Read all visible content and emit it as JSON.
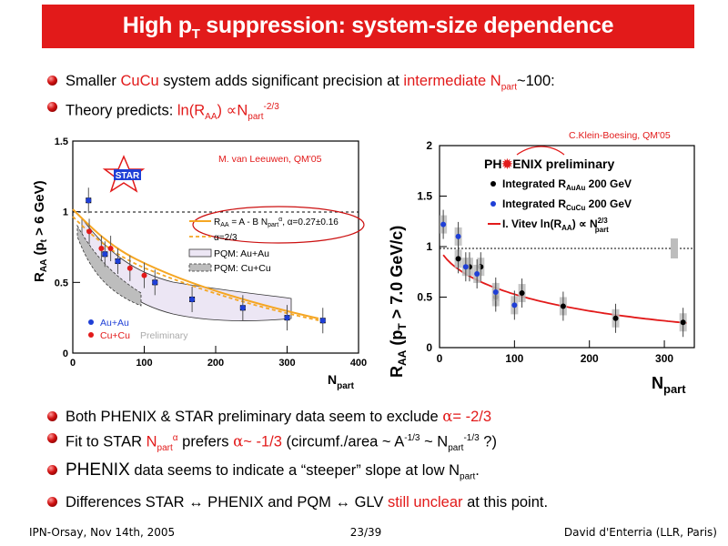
{
  "title": {
    "pre": "High p",
    "sub": "T",
    "post": " suppression: system-size dependence"
  },
  "top_bullets": [
    {
      "a": "Smaller ",
      "b": "CuCu",
      "c": " system adds significant precision at ",
      "d": "intermediate N",
      "dsub": "part",
      "e": "~100",
      "f": ":"
    },
    {
      "a": "Theory predicts: ",
      "b": "ln(R",
      "bsub": "AA",
      "c": ") ∝N",
      "csub": "part",
      "csup": "-2/3"
    }
  ],
  "left_chart": {
    "credit": "M. van Leeuwen, QM'05",
    "logo": "STAR",
    "ylabel": "R",
    "ylabel_sub": "AA",
    "ylabel_rest": " (p",
    "ylabel_sub2": "t",
    "ylabel_tail": " > 6 GeV)",
    "xlabel": "N",
    "xlabel_sub": "part",
    "yticks": [
      "0",
      "0.5",
      "1",
      "1.5"
    ],
    "xticks": [
      "0",
      "100",
      "200",
      "300",
      "400"
    ],
    "legend": {
      "fit_a": "R",
      "fit_sub": "AA",
      "fit_b": " = A - B N",
      "fit_sub2": "part",
      "fit_sup": "α",
      "fit_c": ", α=0.27±0.16",
      "alpha": "α=2/3",
      "pqm_auau": "PQM: Au+Au",
      "pqm_cucu": "PQM: Cu+Cu",
      "auau": "Au+Au",
      "cucu": "Cu+Cu",
      "prelim": "Preliminary"
    },
    "colors": {
      "auau": "#1f3fd6",
      "cucu": "#e21a1a",
      "fit": "#f5a623"
    }
  },
  "right_chart": {
    "credit": "C.Klein-Boesing, QM'05",
    "logo_a": "PH",
    "logo_b": "ENIX",
    "logo_c": " preliminary",
    "ylabel": "R",
    "ylabel_sub": "AA",
    "ylabel_rest": " (p",
    "ylabel_sub2": "T",
    "ylabel_tail": " > 7.0 GeV/c)",
    "xlabel": "N",
    "xlabel_sub": "part",
    "yticks": [
      "0",
      "0.5",
      "1",
      "1.5",
      "2"
    ],
    "xticks": [
      "0",
      "100",
      "200",
      "300"
    ],
    "legend": {
      "l1a": "Integrated R",
      "l1sub": "AuAu",
      "l1b": " 200 GeV",
      "l2a": "Integrated R",
      "l2sub": "CuCu",
      "l2b": " 200 GeV",
      "l3a": "I. Vitev  ln(R",
      "l3sub": "AA",
      "l3b": ") ∝ N",
      "l3sup": "2/3",
      "l3sub2": "part"
    }
  },
  "chart_data": [
    {
      "type": "scatter",
      "x_label": "N_part",
      "y_label": "R_AA (p_t > 6 GeV)",
      "xlim": [
        0,
        400
      ],
      "ylim": [
        0,
        1.5
      ],
      "series": [
        {
          "name": "Au+Au",
          "x": [
            22,
            45,
            63,
            115,
            167,
            238,
            300,
            350
          ],
          "y": [
            1.08,
            0.7,
            0.65,
            0.5,
            0.38,
            0.32,
            0.25,
            0.23
          ]
        },
        {
          "name": "Cu+Cu",
          "x": [
            23,
            40,
            53,
            80,
            100
          ],
          "y": [
            0.86,
            0.74,
            0.74,
            0.6,
            0.55
          ]
        }
      ]
    },
    {
      "type": "scatter",
      "x_label": "N_part",
      "y_label": "R_AA (p_T > 7.0 GeV/c)",
      "xlim": [
        0,
        340
      ],
      "ylim": [
        0,
        2
      ],
      "series": [
        {
          "name": "Integrated R_AuAu 200 GeV",
          "x": [
            25,
            40,
            55,
            75,
            110,
            165,
            235,
            325
          ],
          "y": [
            0.88,
            0.8,
            0.8,
            0.5,
            0.54,
            0.41,
            0.29,
            0.25
          ]
        },
        {
          "name": "Integrated R_CuCu 200 GeV",
          "x": [
            5,
            25,
            35,
            50,
            75,
            100
          ],
          "y": [
            1.22,
            1.1,
            0.8,
            0.73,
            0.55,
            0.42
          ]
        }
      ]
    }
  ],
  "bottom_bullets": [
    {
      "a": "Both PHENIX & STAR preliminary data seem to exclude ",
      "b": "α",
      "c": "= -2/3"
    },
    {
      "a": "Fit to STAR ",
      "b": "N",
      "bsub": "part",
      "bsup": "α",
      "c": " prefers ",
      "d": "α",
      "e": "~ -1/3",
      "f": " (circumf./area ~ A",
      "fsup": "-1/3",
      "g": " ~ N",
      "gsub": "part",
      "gsup": "-1/3",
      "h": " ?)"
    },
    {
      "a": "PHENIX",
      "b": " data seems to indicate a “steeper” slope at low N",
      "bsub": "part",
      "c": "."
    },
    {
      "a": "Differences STAR ↔ PHENIX and PQM ↔ GLV ",
      "b": "still unclear",
      "c": " at this point."
    }
  ],
  "footer": {
    "left": "IPN-Orsay, Nov 14th, 2005",
    "center": "23/39",
    "right": "David d'Enterria (LLR, Paris)"
  }
}
